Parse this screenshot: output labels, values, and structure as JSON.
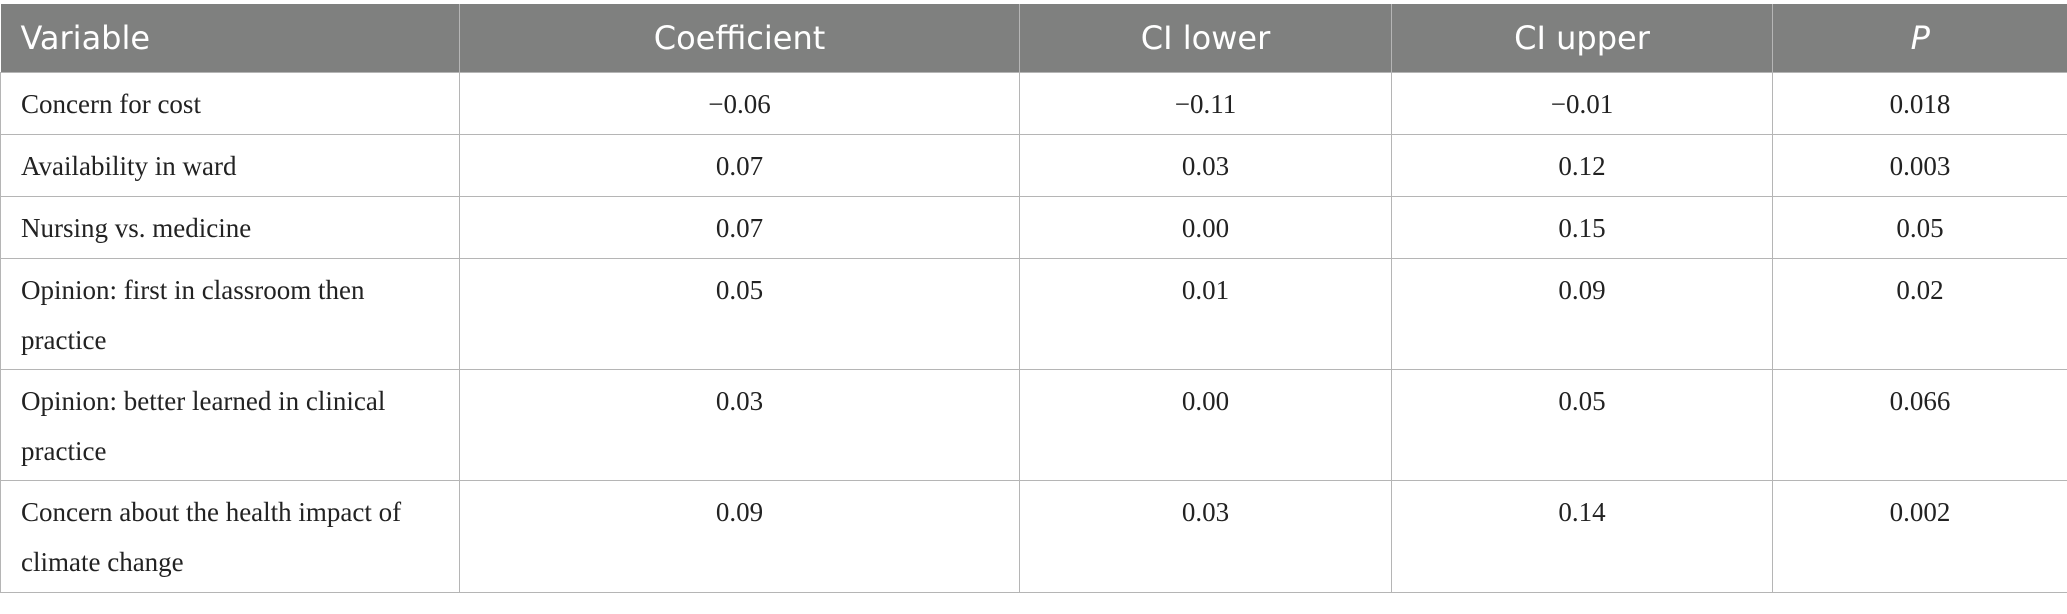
{
  "table": {
    "header": [
      "Variable",
      "Coefficient",
      "CI lower",
      "CI upper",
      "P"
    ],
    "rows": [
      [
        "Concern for cost",
        "−0.06",
        "−0.11",
        "−0.01",
        "0.018"
      ],
      [
        "Availability in ward",
        "0.07",
        "0.03",
        "0.12",
        "0.003"
      ],
      [
        "Nursing vs. medicine",
        "0.07",
        "0.00",
        "0.15",
        "0.05"
      ],
      [
        "Opinion: first in classroom then practice",
        "0.05",
        "0.01",
        "0.09",
        "0.02"
      ],
      [
        "Opinion: better learned in clinical practice",
        "0.03",
        "0.00",
        "0.05",
        "0.066"
      ],
      [
        "Concern about the health impact of climate change",
        "0.09",
        "0.03",
        "0.14",
        "0.002"
      ]
    ]
  }
}
